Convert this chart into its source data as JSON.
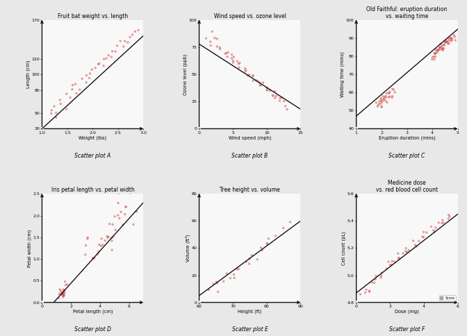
{
  "background_color": "#e8e8e8",
  "panel_bg": "#f8f8f8",
  "plots": [
    {
      "title": "Fruit bat weight vs. length",
      "xlabel": "Weight (lbs)",
      "ylabel": "Length (cm)",
      "label": "Scatter plot A",
      "xlim": [
        1.0,
        3.0
      ],
      "ylim": [
        30,
        170
      ],
      "xticks": [
        1.0,
        1.5,
        2.0,
        2.5,
        3.0
      ],
      "yticks": [
        30,
        50,
        80,
        100,
        120,
        170
      ],
      "x_data": [
        1.15,
        1.2,
        1.25,
        1.3,
        1.35,
        1.4,
        1.45,
        1.5,
        1.55,
        1.6,
        1.65,
        1.7,
        1.75,
        1.8,
        1.85,
        1.9,
        1.95,
        2.0,
        2.05,
        2.1,
        2.15,
        2.2,
        2.25,
        2.3,
        2.35,
        2.4,
        2.45,
        2.5,
        2.55,
        2.6,
        2.65,
        2.7,
        2.75,
        2.8,
        2.85,
        2.9,
        1.3,
        1.6,
        1.9,
        2.2
      ],
      "y_data": [
        50,
        55,
        60,
        48,
        62,
        68,
        55,
        72,
        70,
        80,
        75,
        88,
        82,
        95,
        90,
        98,
        100,
        105,
        108,
        112,
        115,
        118,
        120,
        125,
        122,
        130,
        128,
        135,
        140,
        138,
        145,
        142,
        148,
        150,
        155,
        160,
        45,
        85,
        95,
        110
      ],
      "line_x": [
        1.0,
        3.0
      ],
      "line_y": [
        30,
        150
      ]
    },
    {
      "title": "Wind speed vs. ozone level",
      "xlabel": "Wind speed (mph)",
      "ylabel": "Ozone level (ppb)",
      "label": "Scatter plot B",
      "xlim": [
        0,
        15
      ],
      "ylim": [
        0,
        100
      ],
      "xticks": [
        0,
        5,
        10,
        15
      ],
      "yticks": [
        0,
        25,
        50,
        75,
        100
      ],
      "x_data": [
        1,
        1.5,
        2,
        2.5,
        3,
        3.5,
        4,
        4.5,
        5,
        5.5,
        6,
        6.5,
        7,
        7.5,
        8,
        8.5,
        9,
        9.5,
        10,
        10.5,
        11,
        11.5,
        12,
        12.5,
        13,
        2,
        3,
        4,
        5,
        6,
        7,
        8,
        9,
        10,
        11,
        12,
        3,
        5,
        7,
        9,
        11,
        13,
        4,
        6,
        8,
        10,
        12,
        2.5,
        5.5,
        8.5,
        11.5
      ],
      "y_data": [
        85,
        80,
        78,
        82,
        75,
        70,
        72,
        68,
        65,
        62,
        58,
        55,
        52,
        50,
        48,
        45,
        42,
        40,
        38,
        35,
        33,
        30,
        28,
        25,
        22,
        88,
        73,
        67,
        60,
        56,
        50,
        44,
        40,
        35,
        30,
        25,
        76,
        65,
        55,
        42,
        32,
        20,
        70,
        58,
        48,
        36,
        26,
        83,
        63,
        43,
        28
      ],
      "line_x": [
        0,
        15
      ],
      "line_y": [
        78,
        18
      ]
    },
    {
      "title": "Old Faithful: eruption duration\nvs. waiting time",
      "xlabel": "Eruption duration (mins)",
      "ylabel": "Waiting time (mins)",
      "label": "Scatter plot C",
      "xlim": [
        1,
        5
      ],
      "ylim": [
        40,
        100
      ],
      "xticks": [
        1,
        2,
        3,
        4,
        5
      ],
      "yticks": [
        40,
        50,
        60,
        70,
        80,
        90,
        100
      ],
      "x_data": [
        1.8,
        1.9,
        2.0,
        2.0,
        2.1,
        2.1,
        2.2,
        2.2,
        2.3,
        2.3,
        2.3,
        2.4,
        2.4,
        2.4,
        2.5,
        2.5,
        4.0,
        4.0,
        4.1,
        4.1,
        4.2,
        4.2,
        4.3,
        4.3,
        4.4,
        4.4,
        4.5,
        4.5,
        4.6,
        4.6,
        4.7,
        4.7,
        4.8,
        4.8,
        4.9,
        4.9,
        2.0,
        2.1,
        2.2,
        4.0,
        4.1,
        4.2,
        4.3,
        4.5,
        4.6,
        4.7,
        1.9,
        2.0,
        4.1,
        4.2,
        4.3,
        4.4,
        4.5,
        4.6,
        4.7,
        4.8,
        2.1,
        2.3,
        4.0,
        4.2,
        4.4,
        4.6,
        4.8,
        2.0,
        4.1,
        4.3,
        4.5,
        4.7,
        2.2,
        4.2,
        4.4,
        4.6,
        1.8,
        1.9,
        2.0,
        2.1,
        2.2,
        2.3,
        4.3,
        4.5
      ],
      "y_data": [
        54,
        55,
        53,
        56,
        57,
        54,
        58,
        56,
        59,
        57,
        60,
        58,
        61,
        59,
        62,
        60,
        79,
        80,
        81,
        82,
        83,
        84,
        85,
        83,
        84,
        86,
        85,
        87,
        86,
        88,
        87,
        89,
        88,
        90,
        89,
        91,
        52,
        55,
        57,
        78,
        80,
        83,
        84,
        87,
        88,
        89,
        53,
        54,
        82,
        84,
        85,
        86,
        88,
        89,
        90,
        91,
        56,
        58,
        80,
        83,
        85,
        88,
        90,
        57,
        82,
        84,
        87,
        90,
        55,
        84,
        86,
        89,
        52,
        54,
        55,
        57,
        59,
        61,
        85,
        88
      ],
      "line_x": [
        1,
        5
      ],
      "line_y": [
        47,
        95
      ]
    },
    {
      "title": "Iris petal length vs. petal width",
      "xlabel": "Petal length (cm)",
      "ylabel": "Petal width (cm)",
      "label": "Scatter plot D",
      "xlim": [
        0,
        7
      ],
      "ylim": [
        0.0,
        2.5
      ],
      "xticks": [
        0,
        2,
        4,
        6
      ],
      "yticks": [
        0.0,
        0.5,
        1.0,
        1.5,
        2.0,
        2.5
      ],
      "x_data": [
        1.4,
        1.5,
        1.4,
        1.3,
        1.5,
        1.7,
        1.4,
        1.5,
        1.4,
        1.5,
        3.5,
        3.0,
        3.1,
        3.1,
        3.1,
        4.5,
        3.9,
        4.8,
        4.0,
        4.9,
        4.7,
        4.3,
        4.4,
        4.8,
        5.0,
        4.5,
        3.5,
        3.8,
        3.7,
        3.9,
        5.1,
        5.9,
        5.6,
        5.8,
        6.6,
        4.5,
        6.3,
        5.8,
        6.1,
        5.1,
        5.3,
        5.5,
        5.0,
        5.1,
        5.3,
        4.1,
        4.8,
        1.5,
        1.6,
        1.4,
        1.1,
        1.5,
        1.8,
        1.3,
        1.5,
        1.2,
        1.3,
        1.4,
        1.7,
        1.5
      ],
      "y_data": [
        0.2,
        0.2,
        0.2,
        0.2,
        0.2,
        0.4,
        0.3,
        0.2,
        0.2,
        0.1,
        1.0,
        1.1,
        1.5,
        1.5,
        1.3,
        1.5,
        1.3,
        1.8,
        1.5,
        1.5,
        1.2,
        1.3,
        1.4,
        1.4,
        1.7,
        1.5,
        1.0,
        1.1,
        1.0,
        1.2,
        2.5,
        2.1,
        1.8,
        2.2,
        2.1,
        1.5,
        1.8,
        2.2,
        2.5,
        2.0,
        1.9,
        2.1,
        1.5,
        2.0,
        2.3,
        1.3,
        1.8,
        0.3,
        0.2,
        0.2,
        0.1,
        0.2,
        0.4,
        0.2,
        0.2,
        0.2,
        0.3,
        0.2,
        0.5,
        0.2
      ],
      "line_x": [
        0,
        7
      ],
      "line_y": [
        -0.3,
        2.3
      ]
    },
    {
      "title": "Tree height vs. volume",
      "xlabel": "Height (ft)",
      "ylabel": "Volume (ft³)",
      "label": "Scatter plot E",
      "xlim": [
        60,
        90
      ],
      "ylim": [
        0,
        80
      ],
      "xticks": [
        60,
        70,
        80,
        90
      ],
      "yticks": [
        0,
        20,
        40,
        60,
        80
      ],
      "x_data": [
        63,
        64,
        65,
        66,
        67,
        68,
        69,
        70,
        71,
        72,
        74,
        75,
        76,
        77,
        78,
        79,
        80,
        80,
        82,
        85,
        87,
        80,
        75,
        70,
        65
      ],
      "y_data": [
        10,
        12,
        8,
        14,
        16,
        20,
        18,
        22,
        25,
        24,
        30,
        28,
        35,
        32,
        40,
        38,
        45,
        42,
        50,
        55,
        60,
        48,
        30,
        20,
        15
      ],
      "line_x": [
        60,
        90
      ],
      "line_y": [
        5,
        60
      ]
    },
    {
      "title": "Medicine dose\nvs. red blood cell count",
      "xlabel": "Dose (mg)",
      "ylabel": "Cell count (pL)",
      "label": "Scatter plot F",
      "xlim": [
        0,
        6
      ],
      "ylim": [
        4.8,
        5.6
      ],
      "xticks": [
        0,
        2,
        4,
        6
      ],
      "yticks": [
        4.8,
        5.0,
        5.2,
        5.4,
        5.6
      ],
      "x_data": [
        0.2,
        0.5,
        0.8,
        1.0,
        1.2,
        1.5,
        1.8,
        2.0,
        2.2,
        2.5,
        2.8,
        3.0,
        3.2,
        3.5,
        3.8,
        4.0,
        4.2,
        4.5,
        4.8,
        5.0,
        5.2,
        5.5,
        0.5,
        1.0,
        1.5,
        2.0,
        2.5,
        3.0,
        3.5,
        4.0,
        4.5,
        5.0,
        5.5,
        1.0,
        2.0,
        3.0,
        4.0,
        5.0,
        1.5,
        2.5,
        3.5,
        4.5,
        5.5,
        0.8,
        2.2
      ],
      "y_data": [
        4.85,
        4.9,
        4.88,
        4.95,
        5.0,
        4.98,
        5.05,
        5.08,
        5.1,
        5.12,
        5.15,
        5.18,
        5.2,
        5.22,
        5.25,
        5.28,
        5.3,
        5.32,
        5.35,
        5.38,
        5.4,
        5.42,
        4.88,
        4.98,
        5.02,
        5.1,
        5.15,
        5.2,
        5.25,
        5.3,
        5.35,
        5.4,
        5.45,
        4.95,
        5.08,
        5.18,
        5.28,
        5.38,
        5.0,
        5.12,
        5.22,
        5.32,
        5.42,
        4.9,
        5.1
      ],
      "line_x": [
        0,
        6
      ],
      "line_y": [
        4.87,
        5.45
      ],
      "has_legend": true,
      "legend_label": "Score",
      "legend_color": "#40c0c0"
    }
  ],
  "scatter_color": "#d45050",
  "scatter_alpha": 0.55,
  "scatter_size": 6,
  "line_color": "#111111",
  "line_width": 1.0,
  "title_fontsize": 5.5,
  "label_fontsize": 4.8,
  "tick_fontsize": 4.5,
  "caption_fontsize": 5.5,
  "arrow_color": "#111111"
}
